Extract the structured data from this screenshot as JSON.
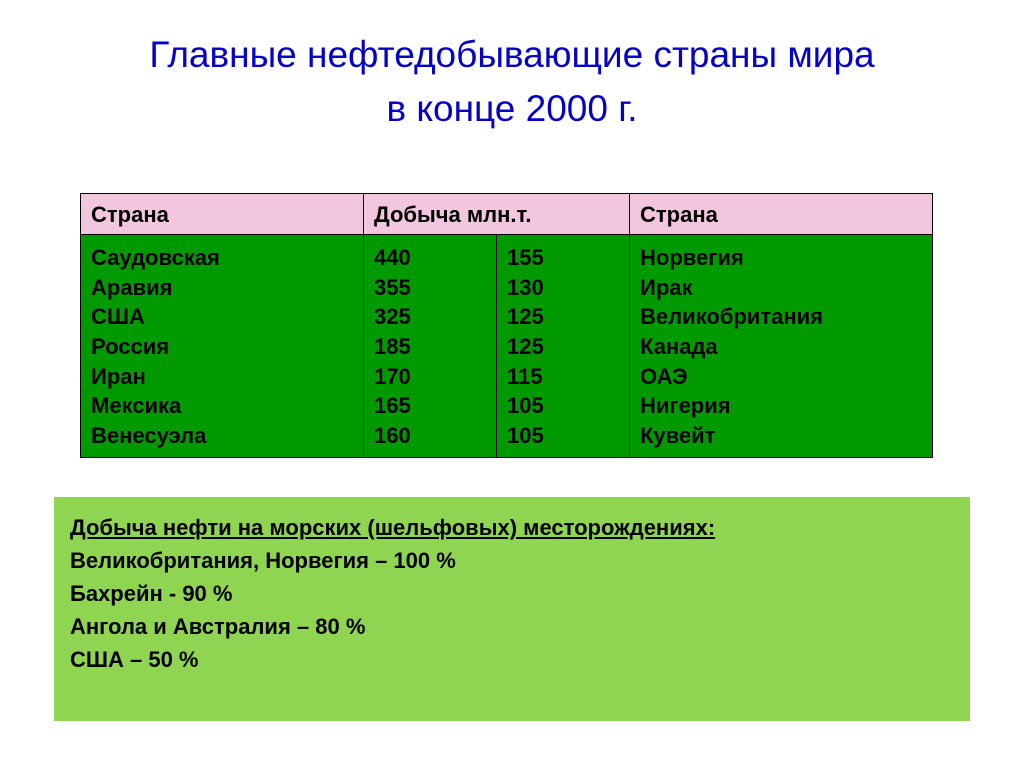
{
  "title_line1": "Главные нефтедобывающие страны мира",
  "title_line2": "в конце 2000 г.",
  "table": {
    "headers": {
      "country": "Страна",
      "production": "Добыча млн.т.",
      "country2": "Страна"
    },
    "left_countries": [
      "Саудовская",
      "Аравия",
      "США",
      "Россия",
      "Иран",
      "Мексика",
      "Венесуэла"
    ],
    "left_values": [
      "440",
      "355",
      "325",
      "185",
      "170",
      "165",
      "160"
    ],
    "right_values": [
      "155",
      "130",
      "125",
      "125",
      "115",
      "105",
      "105"
    ],
    "right_countries": [
      "Норвегия",
      "Ирак",
      "Великобритания",
      "Канада",
      "ОАЭ",
      "Нигерия",
      "Кувейт"
    ]
  },
  "note": {
    "header": "Добыча нефти на морских (шельфовых) месторождениях:",
    "lines": [
      "Великобритания, Норвегия – 100 %",
      "Бахрейн  - 90 %",
      "Ангола и Австралия – 80 %",
      "США – 50 %"
    ]
  },
  "colors": {
    "title": "#0600c8",
    "header_bg": "#f2c6de",
    "cell_bg": "#009a00",
    "note_bg": "#8fd552",
    "background": "#ffffff"
  }
}
